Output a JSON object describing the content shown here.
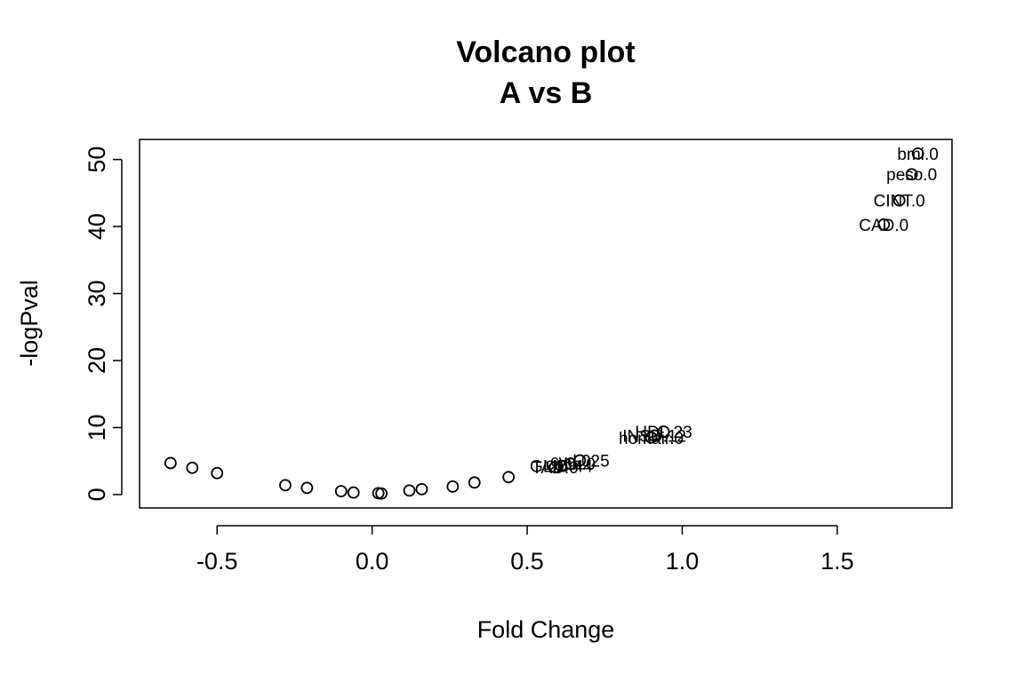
{
  "chart_data": {
    "type": "scatter",
    "title": "Volcano plot",
    "subtitle": "A vs B",
    "xlabel": "Fold Change",
    "ylabel": "-logPval",
    "xlim": [
      -0.75,
      1.87
    ],
    "ylim": [
      -2,
      53
    ],
    "x_ticks": [
      -0.5,
      0.0,
      0.5,
      1.0,
      1.5
    ],
    "x_tick_labels": [
      "-0.5",
      "0.0",
      "0.5",
      "1.0",
      "1.5"
    ],
    "y_ticks": [
      0,
      10,
      20,
      30,
      40,
      50
    ],
    "y_tick_labels": [
      "0",
      "10",
      "20",
      "30",
      "40",
      "50"
    ],
    "grid": false,
    "legend": "none",
    "point_color": "#000000",
    "points": [
      {
        "x": -0.65,
        "y": 4.7
      },
      {
        "x": -0.58,
        "y": 4.0
      },
      {
        "x": -0.5,
        "y": 3.2
      },
      {
        "x": -0.28,
        "y": 1.4
      },
      {
        "x": -0.21,
        "y": 1.0
      },
      {
        "x": -0.1,
        "y": 0.5
      },
      {
        "x": -0.06,
        "y": 0.3
      },
      {
        "x": 0.02,
        "y": 0.2
      },
      {
        "x": 0.03,
        "y": 0.15
      },
      {
        "x": 0.12,
        "y": 0.6
      },
      {
        "x": 0.16,
        "y": 0.8
      },
      {
        "x": 0.26,
        "y": 1.2
      },
      {
        "x": 0.33,
        "y": 1.8
      },
      {
        "x": 0.44,
        "y": 2.6
      },
      {
        "x": 0.59,
        "y": 4.1,
        "label": "TAD.0"
      },
      {
        "x": 0.61,
        "y": 4.3,
        "label": "GLIC.44"
      },
      {
        "x": 0.64,
        "y": 4.6,
        "label": "cmin.0"
      },
      {
        "x": 0.67,
        "y": 5.1,
        "label": "cvd.025"
      },
      {
        "x": 0.9,
        "y": 8.5,
        "label": "homair.0"
      },
      {
        "x": 0.91,
        "y": 8.8,
        "label": "INSU.12"
      },
      {
        "x": 0.94,
        "y": 9.4,
        "label": "HDL.23"
      },
      {
        "x": 1.65,
        "y": 40.3,
        "label": "CAD.0"
      },
      {
        "x": 1.7,
        "y": 43.9,
        "label": "CINT.0"
      },
      {
        "x": 1.74,
        "y": 47.8,
        "label": "peso.0"
      },
      {
        "x": 1.76,
        "y": 50.9,
        "label": "bmi.0"
      }
    ]
  }
}
